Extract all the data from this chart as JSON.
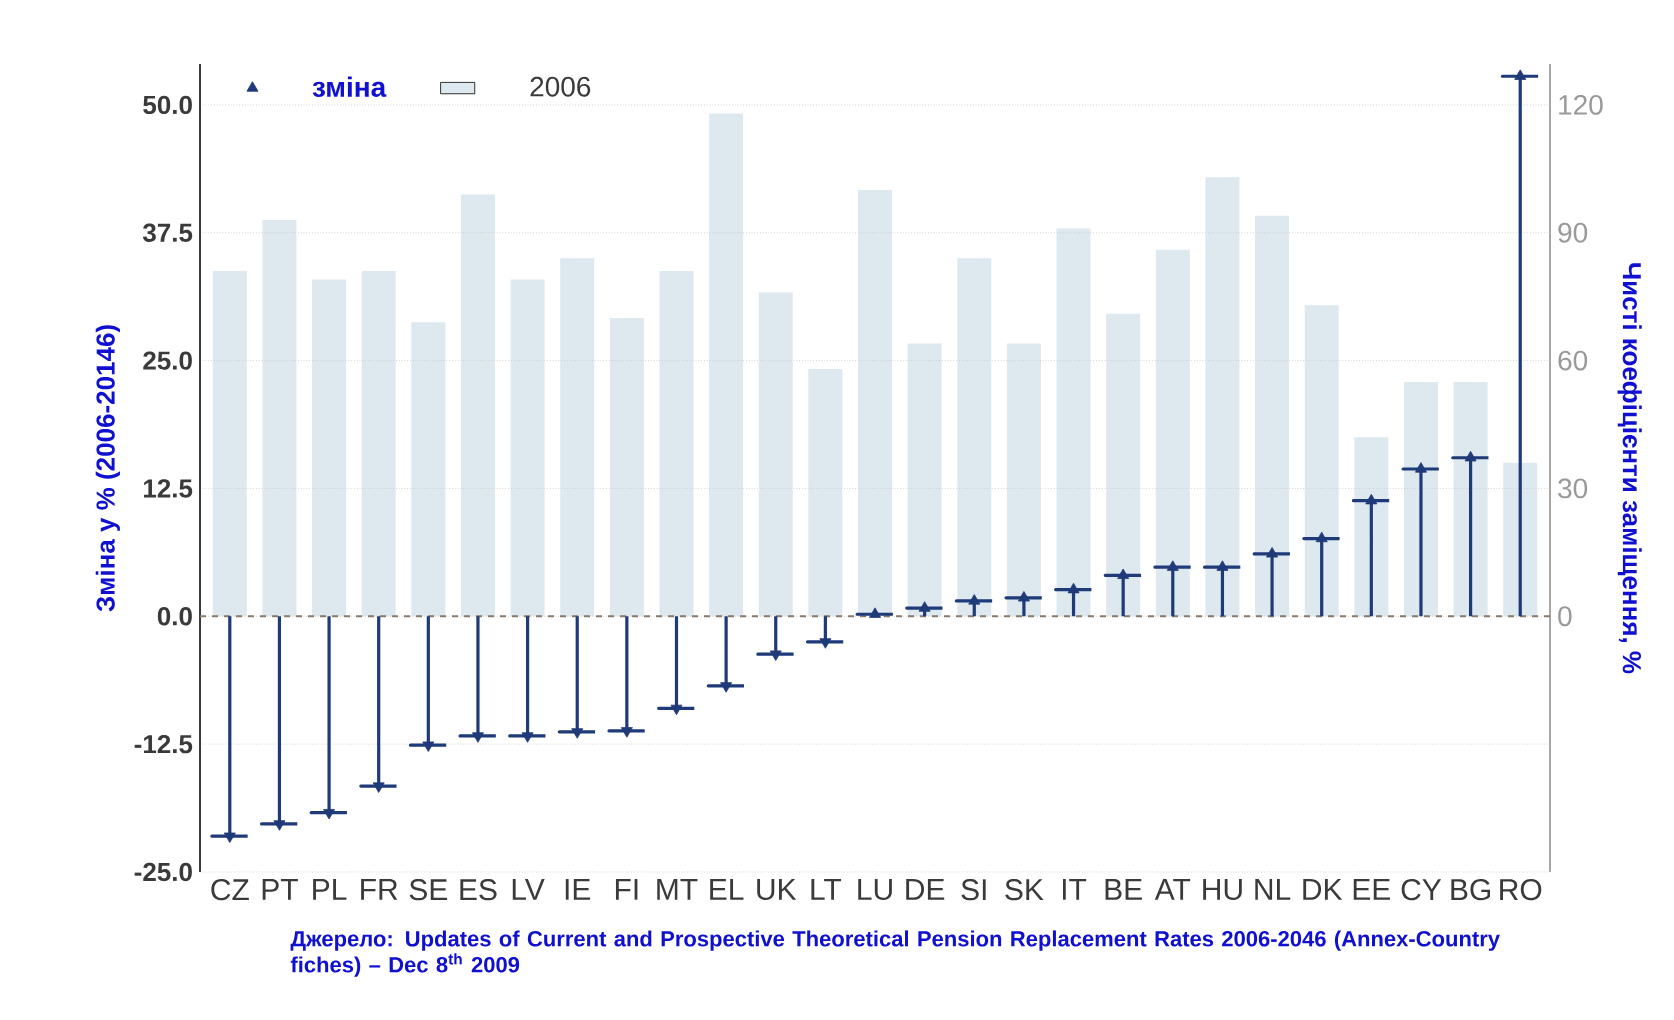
{
  "chart_data": {
    "type": "lollipop",
    "ylabel": "Зміна у % (2006-20146)",
    "y2label": "Чисті коефіцієнти заміщення, %",
    "annotations": [
      "Джерело: Updates of Current and Prospective Theoretical Pension Replacement Rates 2006-2046 (Annex-Country fiches) – Dec 8$^{th}$ 2009"
    ],
    "categories": [
      "CZ",
      "PT",
      "PL",
      "FR",
      "SE",
      "ES",
      "LV",
      "IE",
      "FI",
      "MT",
      "EL",
      "UK",
      "LT",
      "LU",
      "DE",
      "SI",
      "SK",
      "IT",
      "BE",
      "AT",
      "HU",
      "NL",
      "DK",
      "EE",
      "CY",
      "BG",
      "RO"
    ],
    "series": [
      {
        "name": "2006",
        "type": "bar",
        "axis": "y2",
        "color": "#dde9ee",
        "values": [
          81,
          93,
          79,
          81,
          69,
          99,
          79,
          84,
          70,
          81,
          118,
          76,
          58,
          100,
          64,
          84,
          64,
          91,
          71,
          86,
          103,
          94,
          73,
          42,
          55,
          55,
          36
        ]
      },
      {
        "name": "зміна",
        "color": "#1f3a78",
        "values": [
          -21.5,
          -20.3,
          -19.2,
          -16.6,
          -12.6,
          -11.7,
          -11.7,
          -11.3,
          -11.2,
          -9.0,
          -6.8,
          -3.7,
          -2.5,
          0.2,
          0.8,
          1.5,
          1.8,
          2.6,
          4.0,
          4.8,
          4.8,
          6.1,
          7.6,
          11.3,
          14.4,
          15.5,
          52.8
        ]
      }
    ],
    "ylim": [
      -25,
      54
    ],
    "yticks": [
      {
        "value": -25,
        "label": "-25.0"
      },
      {
        "value": -12.5,
        "label": "-12.5"
      },
      {
        "value": 0,
        "label": "0.0"
      },
      {
        "value": 12.5,
        "label": "12.5"
      },
      {
        "value": 25,
        "label": "25.0"
      },
      {
        "value": 37.5,
        "label": "37.5"
      },
      {
        "value": 50,
        "label": "50.0"
      }
    ],
    "y2lim": [
      -60,
      129.6
    ],
    "y2ticks": [
      0,
      30,
      60,
      90,
      120
    ],
    "grid": "y",
    "marker": "triangle",
    "legend": "top left",
    "ref_lines": [
      {
        "axis": "y",
        "value": 0,
        "color": "#8a7a6a",
        "line_style": "dashed"
      }
    ]
  }
}
